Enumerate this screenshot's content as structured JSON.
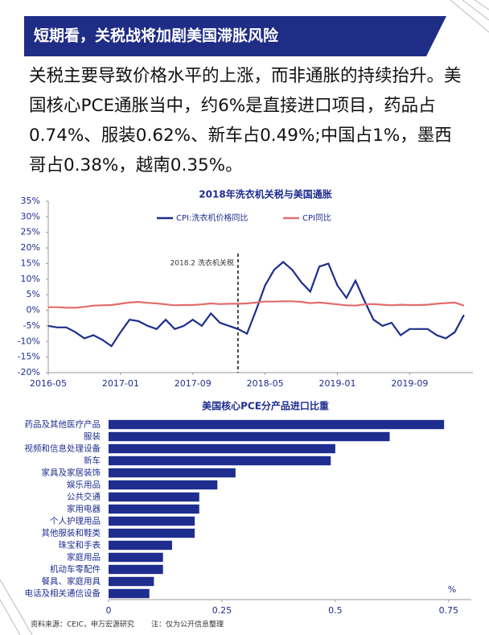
{
  "header": {
    "title": "短期看，关税战将加剧美国滞胀风险"
  },
  "body": {
    "text": "关税主要导致价格水平的上涨，而非通胀的持续抬升。美国核心PCE通胀当中，约6%是直接进口项目，药品占0.74%、服装0.62%、新车占0.49%;中国占1%，墨西哥占0.38%，越南0.35%。"
  },
  "chart_data": [
    {
      "type": "line",
      "title": "2018年洗衣机关税与美国通胀",
      "x": [
        "2016-05",
        "2016-06",
        "2016-07",
        "2016-08",
        "2016-09",
        "2016-10",
        "2016-11",
        "2016-12",
        "2017-01",
        "2017-02",
        "2017-03",
        "2017-04",
        "2017-05",
        "2017-06",
        "2017-07",
        "2017-08",
        "2017-09",
        "2017-10",
        "2017-11",
        "2017-12",
        "2018-01",
        "2018-02",
        "2018-03",
        "2018-04",
        "2018-05",
        "2018-06",
        "2018-07",
        "2018-08",
        "2018-09",
        "2018-10",
        "2018-11",
        "2018-12",
        "2019-01",
        "2019-02",
        "2019-03",
        "2019-04",
        "2019-05",
        "2019-06",
        "2019-07",
        "2019-08",
        "2019-09",
        "2019-10",
        "2019-11",
        "2019-12",
        "2020-01",
        "2020-02",
        "2020-03"
      ],
      "series": [
        {
          "name": "CPI:洗衣机价格同比",
          "color": "#1c2e8c",
          "values": [
            -5,
            -5.5,
            -5.5,
            -7,
            -9,
            -8,
            -9.5,
            -11.5,
            -7,
            -3,
            -3.5,
            -5,
            -6,
            -3,
            -6,
            -5,
            -3,
            -5,
            -1,
            -4,
            -5,
            -6,
            -7.5,
            0,
            8,
            13,
            15.5,
            13,
            9,
            6,
            14,
            15,
            8,
            4,
            9.5,
            3,
            -3,
            -5,
            -4,
            -8,
            -6,
            -6,
            -6,
            -8,
            -9,
            -7,
            -1.5
          ]
        },
        {
          "name": "CPI同比",
          "color": "#e36c6c",
          "values": [
            1.0,
            1.0,
            0.8,
            0.8,
            1.1,
            1.5,
            1.6,
            1.7,
            2.1,
            2.5,
            2.7,
            2.4,
            2.2,
            1.9,
            1.6,
            1.7,
            1.7,
            1.9,
            2.2,
            2.0,
            2.1,
            2.1,
            2.2,
            2.5,
            2.8,
            2.8,
            2.9,
            2.9,
            2.7,
            2.3,
            2.5,
            2.2,
            1.9,
            1.6,
            1.5,
            1.9,
            2.0,
            1.8,
            1.6,
            1.8,
            1.7,
            1.7,
            1.8,
            2.1,
            2.3,
            2.5,
            1.5
          ]
        }
      ],
      "xlim": [
        "2016-05",
        "2020-04"
      ],
      "xticks": [
        "2016-05",
        "2017-01",
        "2017-09",
        "2018-05",
        "2019-01",
        "2019-09"
      ],
      "ylim": [
        -20,
        35
      ],
      "yticks": [
        {
          "value": -20,
          "label": "-20%"
        },
        {
          "value": -15,
          "label": "-15%"
        },
        {
          "value": -10,
          "label": "-10%"
        },
        {
          "value": -5,
          "label": "-5%"
        },
        {
          "value": 0,
          "label": "0%"
        },
        {
          "value": 5,
          "label": "5%"
        },
        {
          "value": 10,
          "label": "10%"
        },
        {
          "value": 15,
          "label": "15%"
        },
        {
          "value": 20,
          "label": "20%"
        },
        {
          "value": 25,
          "label": "25%"
        },
        {
          "value": 30,
          "label": "30%"
        },
        {
          "value": 35,
          "label": "35%"
        }
      ],
      "annotations": [
        {
          "x": "2018-02",
          "label": "2018.2 洗衣机关税"
        }
      ]
    },
    {
      "type": "hbar",
      "title": "美国核心PCE分产品进口比重",
      "color": "#1f2d8f",
      "categories": [
        "药品及其他医疗产品",
        "服装",
        "视频和信息处理设备",
        "新车",
        "家具及家居装饰",
        "娱乐用品",
        "公共交通",
        "家用电器",
        "个人护理用品",
        "其他服装和鞋类",
        "珠宝和手表",
        "家庭用品",
        "机动车零配件",
        "餐具、家庭用具",
        "电话及相关通信设备"
      ],
      "values": [
        0.74,
        0.62,
        0.5,
        0.49,
        0.28,
        0.24,
        0.2,
        0.2,
        0.19,
        0.19,
        0.14,
        0.12,
        0.12,
        0.1,
        0.09
      ],
      "xlim": [
        0,
        0.8
      ],
      "xticks": [
        0,
        0.25,
        0.5,
        0.75
      ],
      "xlabel": "%"
    }
  ],
  "footer": {
    "source": "资料来源：CEIC，申万宏源研究",
    "note": "注：仅为公开信息整理"
  }
}
